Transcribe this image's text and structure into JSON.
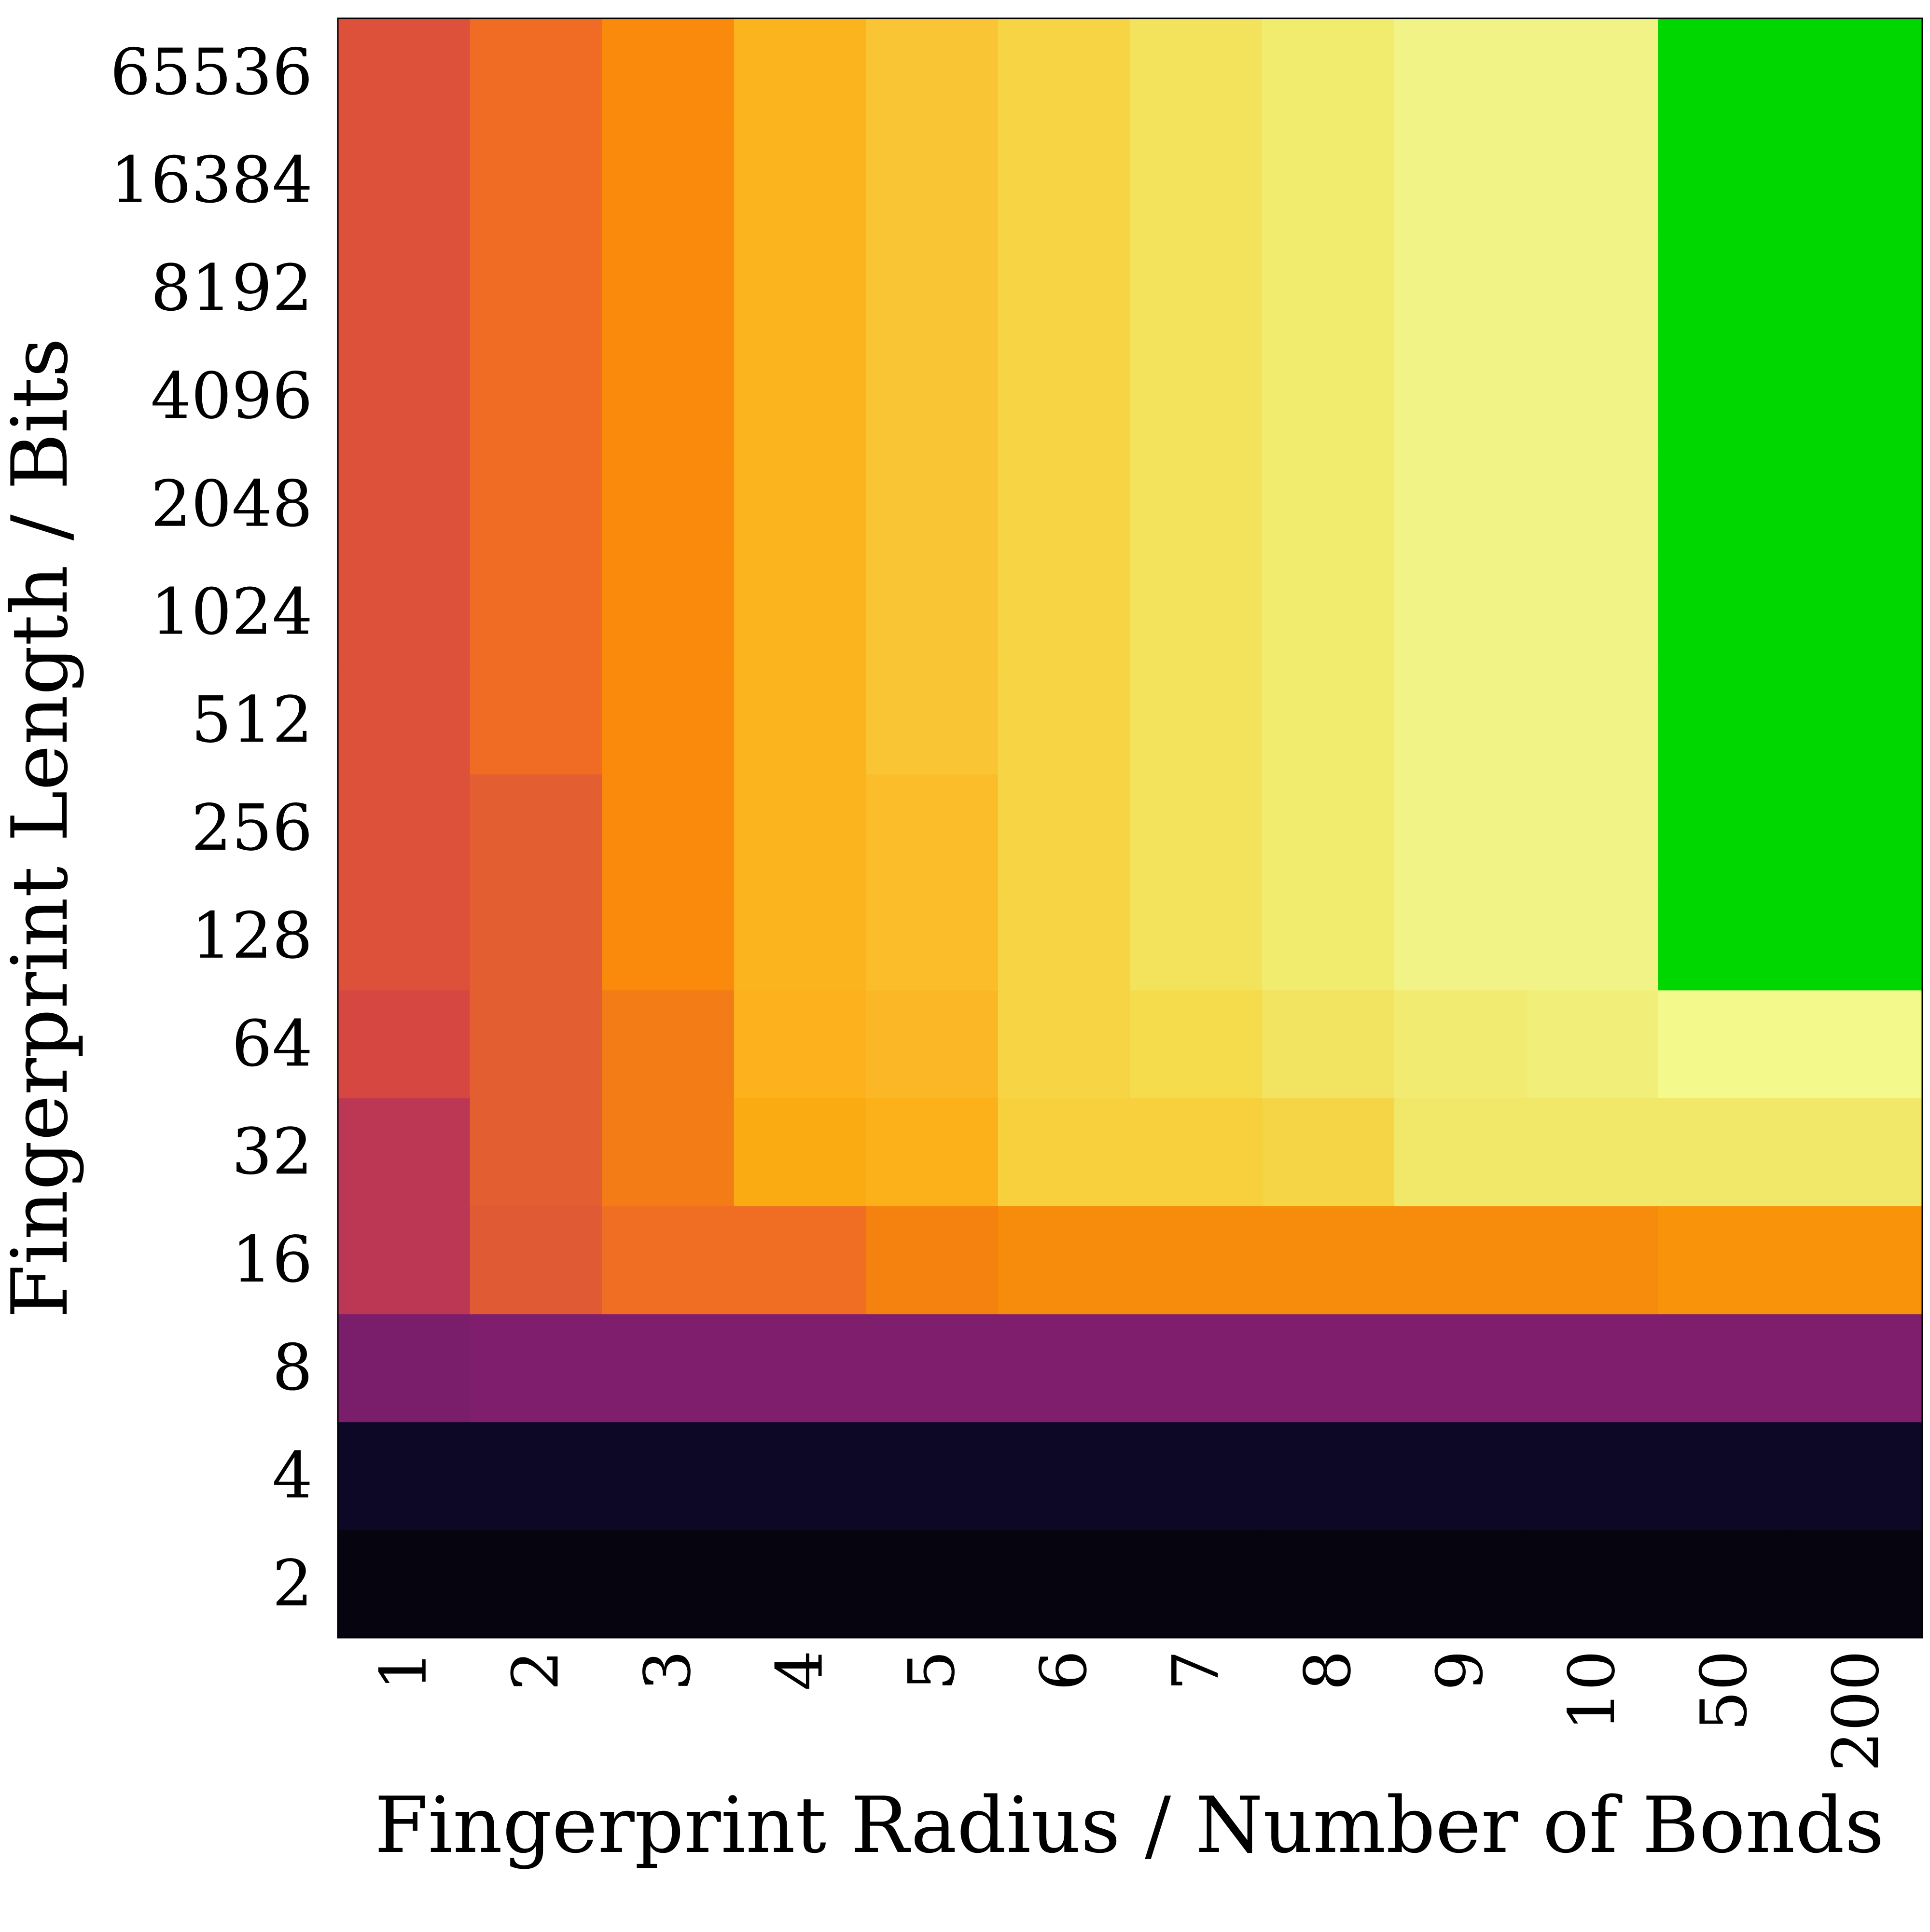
{
  "chart_data": {
    "type": "heatmap",
    "title": "",
    "xlabel": "Fingerprint Radius / Number of Bonds",
    "ylabel": "Fingerprint Length / Bits",
    "x_categories": [
      "1",
      "2",
      "3",
      "4",
      "5",
      "6",
      "7",
      "8",
      "9",
      "10",
      "50",
      "200"
    ],
    "y_categories": [
      "2",
      "4",
      "8",
      "16",
      "32",
      "64",
      "128",
      "256",
      "512",
      "1024",
      "2048",
      "4096",
      "8192",
      "16384",
      "65536"
    ],
    "colormap": "inferno",
    "highlight_color": "#00d600",
    "grid": false,
    "legend": "none",
    "cells": [
      [
        "#05040f",
        "#05040f",
        "#05040f",
        "#05040f",
        "#05040f",
        "#05040f",
        "#05040f",
        "#05040f",
        "#05040f",
        "#05040f",
        "#05040f",
        "#05040f"
      ],
      [
        "#0d0826",
        "#0d0826",
        "#0d0826",
        "#0d0826",
        "#0d0826",
        "#0d0826",
        "#0d0826",
        "#0d0826",
        "#0d0826",
        "#0d0826",
        "#0d0826",
        "#0d0826"
      ],
      [
        "#7a1d6b",
        "#7f1e6c",
        "#7f1e6c",
        "#7f1e6c",
        "#7f1e6c",
        "#7f1e6c",
        "#7f1e6c",
        "#7f1e6c",
        "#7f1e6c",
        "#7f1e6c",
        "#7f1e6c",
        "#7f1e6c"
      ],
      [
        "#bc3754",
        "#e05a33",
        "#ef6e24",
        "#ef6e24",
        "#f5820f",
        "#f78b0b",
        "#f78b0b",
        "#f78b0b",
        "#f78b0b",
        "#f78b0b",
        "#f99309",
        "#f99309"
      ],
      [
        "#bc3754",
        "#e35e30",
        "#f47c17",
        "#fbab12",
        "#fcb11b",
        "#f8cf3c",
        "#f8cf3c",
        "#f5d545",
        "#f1e768",
        "#f1e768",
        "#f1e768",
        "#f1e768"
      ],
      [
        "#d74741",
        "#e35e30",
        "#f47c17",
        "#fcb11d",
        "#fcb727",
        "#f6d444",
        "#f5dc4c",
        "#f2e361",
        "#f1eb72",
        "#f1ef79",
        "#f4f98c",
        "#f4f98c"
      ],
      [
        "#dd513a",
        "#e35e30",
        "#f98a0b",
        "#fcb41e",
        "#fbbe2a",
        "#f6d443",
        "#f3e35c",
        "#f1ec6e",
        "#f2f386",
        "#f2f386",
        "#00d600",
        "#00d600"
      ],
      [
        "#dd513a",
        "#e35e30",
        "#f98a0b",
        "#fcb41e",
        "#fbbe2a",
        "#f6d443",
        "#f3e35c",
        "#f1ec6e",
        "#f2f386",
        "#f2f386",
        "#00d600",
        "#00d600"
      ],
      [
        "#dd513a",
        "#f06c25",
        "#f98a0b",
        "#fcb41e",
        "#fac534",
        "#f6d443",
        "#f3e35c",
        "#f1ec6e",
        "#f2f386",
        "#f2f386",
        "#00d600",
        "#00d600"
      ],
      [
        "#dd513a",
        "#f06c25",
        "#f98a0b",
        "#fcb41e",
        "#fac534",
        "#f6d443",
        "#f3e35c",
        "#f1ec6e",
        "#f2f386",
        "#f2f386",
        "#00d600",
        "#00d600"
      ],
      [
        "#dd513a",
        "#f06c25",
        "#f98a0b",
        "#fcb41e",
        "#fac534",
        "#f6d443",
        "#f3e35c",
        "#f1ec6e",
        "#f2f386",
        "#f2f386",
        "#00d600",
        "#00d600"
      ],
      [
        "#dd513a",
        "#f06c25",
        "#f98a0b",
        "#fcb41e",
        "#fac534",
        "#f6d443",
        "#f3e35c",
        "#f1ec6e",
        "#f2f386",
        "#f2f386",
        "#00d600",
        "#00d600"
      ],
      [
        "#dd513a",
        "#f06c25",
        "#f98a0b",
        "#fcb41e",
        "#fac534",
        "#f6d443",
        "#f3e35c",
        "#f1ec6e",
        "#f2f386",
        "#f2f386",
        "#00d600",
        "#00d600"
      ],
      [
        "#dd513a",
        "#f06c25",
        "#f98a0b",
        "#fcb41e",
        "#fac534",
        "#f6d443",
        "#f3e35c",
        "#f1ec6e",
        "#f2f386",
        "#f2f386",
        "#00d600",
        "#00d600"
      ],
      [
        "#dd513a",
        "#f06c25",
        "#f98a0b",
        "#fcb41e",
        "#fac534",
        "#f6d443",
        "#f3e35c",
        "#f1ec6e",
        "#f2f386",
        "#f2f386",
        "#00d600",
        "#00d600"
      ]
    ]
  }
}
